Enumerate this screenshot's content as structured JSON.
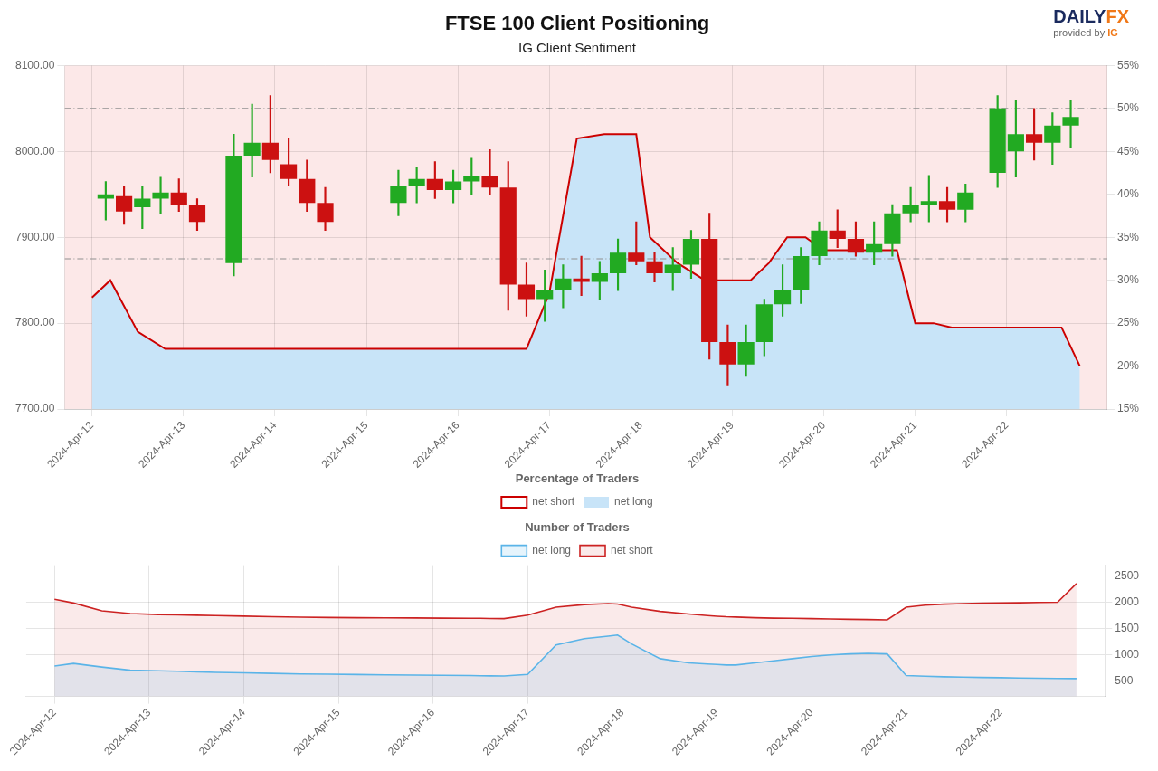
{
  "chart_data": [
    {
      "type": "candlestick",
      "title": "FTSE 100 Client Positioning",
      "subtitle": "IG Client Sentiment",
      "annotations": [
        [
          {
            "text": "DAILY",
            "color": "#1a2a5e"
          },
          {
            "text": "FX",
            "color": "#f07818"
          }
        ],
        [
          {
            "text": "provided by ",
            "color": "#666666"
          },
          {
            "text": "IG",
            "color": "#f07818"
          }
        ]
      ],
      "legend": "bottom",
      "legend_title": "Percentage of Traders",
      "grid": true,
      "background_color": "#fce8e8",
      "xlim": [
        -0.3,
        11.1
      ],
      "xticks": [
        {
          "value": 0,
          "label": "2024-Apr-12"
        },
        {
          "value": 1,
          "label": "2024-Apr-13"
        },
        {
          "value": 2,
          "label": "2024-Apr-14"
        },
        {
          "value": 3,
          "label": "2024-Apr-15"
        },
        {
          "value": 4,
          "label": "2024-Apr-16"
        },
        {
          "value": 5,
          "label": "2024-Apr-17"
        },
        {
          "value": 6,
          "label": "2024-Apr-18"
        },
        {
          "value": 7,
          "label": "2024-Apr-19"
        },
        {
          "value": 8,
          "label": "2024-Apr-20"
        },
        {
          "value": 9,
          "label": "2024-Apr-21"
        },
        {
          "value": 10,
          "label": "2024-Apr-22"
        }
      ],
      "ylim": [
        7700,
        8100
      ],
      "yticks": [
        {
          "value": 7700,
          "label": "7700.00"
        },
        {
          "value": 7800,
          "label": "7800.00"
        },
        {
          "value": 7900,
          "label": "7900.00"
        },
        {
          "value": 8000,
          "label": "8000.00"
        },
        {
          "value": 8100,
          "label": "8100.00"
        }
      ],
      "y2lim": [
        0.15,
        0.55
      ],
      "y2ticks": [
        {
          "value": 0.15,
          "label": "15%"
        },
        {
          "value": 0.2,
          "label": "20%"
        },
        {
          "value": 0.25,
          "label": "25%"
        },
        {
          "value": 0.3,
          "label": "30%"
        },
        {
          "value": 0.35,
          "label": "35%"
        },
        {
          "value": 0.4,
          "label": "40%"
        },
        {
          "value": 0.45,
          "label": "45%"
        },
        {
          "value": 0.5,
          "label": "50%"
        },
        {
          "value": 0.55,
          "label": "55%"
        }
      ],
      "candles": {
        "x": [
          0.15,
          0.35,
          0.55,
          0.75,
          0.95,
          1.15,
          1.55,
          1.75,
          1.95,
          2.15,
          2.35,
          2.55,
          3.35,
          3.55,
          3.75,
          3.95,
          4.15,
          4.35,
          4.55,
          4.75,
          4.95,
          5.15,
          5.35,
          5.55,
          5.75,
          5.95,
          6.15,
          6.35,
          6.55,
          6.75,
          6.95,
          7.15,
          7.35,
          7.55,
          7.75,
          7.95,
          8.15,
          8.35,
          8.55,
          8.75,
          8.95,
          9.15,
          9.35,
          9.55,
          9.9,
          10.1,
          10.3,
          10.5,
          10.7
        ],
        "open": [
          7945,
          7948,
          7935,
          7945,
          7952,
          7938,
          7870,
          7995,
          8010,
          7985,
          7968,
          7940,
          7940,
          7960,
          7968,
          7955,
          7965,
          7972,
          7958,
          7845,
          7828,
          7838,
          7852,
          7848,
          7858,
          7882,
          7872,
          7858,
          7868,
          7898,
          7778,
          7752,
          7778,
          7822,
          7838,
          7878,
          7908,
          7898,
          7882,
          7892,
          7928,
          7938,
          7942,
          7932,
          7975,
          8000,
          8020,
          8010,
          8030
        ],
        "high": [
          7965,
          7960,
          7960,
          7970,
          7968,
          7945,
          8020,
          8055,
          8065,
          8015,
          7990,
          7958,
          7978,
          7982,
          7988,
          7978,
          7992,
          8002,
          7988,
          7870,
          7862,
          7868,
          7878,
          7872,
          7898,
          7918,
          7882,
          7888,
          7908,
          7928,
          7798,
          7798,
          7828,
          7868,
          7888,
          7918,
          7932,
          7918,
          7918,
          7938,
          7958,
          7972,
          7958,
          7962,
          8065,
          8060,
          8050,
          8045,
          8060
        ],
        "low": [
          7920,
          7915,
          7910,
          7928,
          7930,
          7908,
          7855,
          7970,
          7975,
          7960,
          7930,
          7908,
          7925,
          7940,
          7945,
          7940,
          7950,
          7950,
          7815,
          7808,
          7802,
          7818,
          7832,
          7828,
          7838,
          7868,
          7848,
          7838,
          7852,
          7758,
          7728,
          7738,
          7762,
          7808,
          7823,
          7868,
          7888,
          7878,
          7868,
          7878,
          7918,
          7918,
          7918,
          7918,
          7958,
          7970,
          7990,
          7985,
          8005
        ],
        "close": [
          7950,
          7930,
          7945,
          7952,
          7938,
          7918,
          7995,
          8010,
          7990,
          7968,
          7940,
          7918,
          7960,
          7968,
          7955,
          7965,
          7972,
          7958,
          7845,
          7828,
          7838,
          7852,
          7848,
          7858,
          7882,
          7872,
          7858,
          7868,
          7898,
          7778,
          7752,
          7778,
          7822,
          7838,
          7878,
          7908,
          7898,
          7882,
          7892,
          7928,
          7938,
          7942,
          7932,
          7952,
          8050,
          8020,
          8010,
          8030,
          8040
        ],
        "colors": [
          "#22aa22",
          "#cc1111",
          "#22aa22",
          "#22aa22",
          "#cc1111",
          "#cc1111",
          "#22aa22",
          "#22aa22",
          "#cc1111",
          "#cc1111",
          "#cc1111",
          "#cc1111",
          "#22aa22",
          "#22aa22",
          "#cc1111",
          "#22aa22",
          "#22aa22",
          "#cc1111",
          "#cc1111",
          "#cc1111",
          "#22aa22",
          "#22aa22",
          "#cc1111",
          "#22aa22",
          "#22aa22",
          "#cc1111",
          "#cc1111",
          "#22aa22",
          "#22aa22",
          "#cc1111",
          "#cc1111",
          "#22aa22",
          "#22aa22",
          "#22aa22",
          "#22aa22",
          "#22aa22",
          "#cc1111",
          "#cc1111",
          "#22aa22",
          "#22aa22",
          "#22aa22",
          "#22aa22",
          "#cc1111",
          "#22aa22",
          "#22aa22",
          "#22aa22",
          "#cc1111",
          "#22aa22",
          "#22aa22"
        ]
      },
      "fill_below": {
        "name": "net long",
        "color": "#c8e4f8"
      },
      "series": [
        {
          "name": "net short",
          "type": "line",
          "axis": "y2",
          "color": "#cc0000",
          "x": [
            0.0,
            0.2,
            0.5,
            0.8,
            1.1,
            1.3,
            1.5,
            1.7,
            2.0,
            2.3,
            2.6,
            2.9,
            3.2,
            3.5,
            3.8,
            4.1,
            4.4,
            4.5,
            4.6,
            4.75,
            5.0,
            5.3,
            5.6,
            5.85,
            5.95,
            6.1,
            6.4,
            6.7,
            6.9,
            7.0,
            7.1,
            7.2,
            7.4,
            7.6,
            7.8,
            8.0,
            8.2,
            8.4,
            8.6,
            8.8,
            9.0,
            9.2,
            9.4,
            9.6,
            9.8,
            10.0,
            10.2,
            10.4,
            10.6,
            10.8
          ],
          "values": [
            0.28,
            0.3,
            0.24,
            0.22,
            0.22,
            0.22,
            0.22,
            0.22,
            0.22,
            0.22,
            0.22,
            0.22,
            0.22,
            0.22,
            0.22,
            0.22,
            0.22,
            0.22,
            0.22,
            0.22,
            0.285,
            0.465,
            0.47,
            0.47,
            0.47,
            0.35,
            0.32,
            0.3,
            0.3,
            0.3,
            0.3,
            0.3,
            0.32,
            0.35,
            0.35,
            0.335,
            0.335,
            0.335,
            0.335,
            0.335,
            0.25,
            0.25,
            0.245,
            0.245,
            0.245,
            0.245,
            0.245,
            0.245,
            0.245,
            0.2
          ]
        }
      ],
      "reference_lines": {
        "axis": "y2",
        "values": [
          0.5,
          0.325
        ],
        "line_style": "dashdot"
      }
    },
    {
      "type": "line",
      "legend": "top",
      "legend_title": "Number of Traders",
      "grid": true,
      "xlim": [
        -0.3,
        11.1
      ],
      "xticks": [
        {
          "value": 0,
          "label": "2024-Apr-12"
        },
        {
          "value": 1,
          "label": "2024-Apr-13"
        },
        {
          "value": 2,
          "label": "2024-Apr-14"
        },
        {
          "value": 3,
          "label": "2024-Apr-15"
        },
        {
          "value": 4,
          "label": "2024-Apr-16"
        },
        {
          "value": 5,
          "label": "2024-Apr-17"
        },
        {
          "value": 6,
          "label": "2024-Apr-18"
        },
        {
          "value": 7,
          "label": "2024-Apr-19"
        },
        {
          "value": 8,
          "label": "2024-Apr-20"
        },
        {
          "value": 9,
          "label": "2024-Apr-21"
        },
        {
          "value": 10,
          "label": "2024-Apr-22"
        }
      ],
      "ylim": [
        200,
        2700
      ],
      "yticks": [
        500,
        1000,
        1500,
        2000,
        2500
      ],
      "series": [
        {
          "name": "net long",
          "color": "#5ab4e8",
          "x": [
            0.0,
            0.2,
            0.5,
            0.8,
            1.1,
            1.3,
            1.5,
            1.7,
            2.0,
            2.3,
            2.6,
            2.9,
            3.2,
            3.5,
            3.8,
            4.1,
            4.4,
            4.5,
            4.6,
            4.75,
            5.0,
            5.3,
            5.6,
            5.85,
            5.95,
            6.1,
            6.4,
            6.7,
            6.9,
            7.0,
            7.1,
            7.2,
            7.4,
            7.6,
            7.8,
            8.0,
            8.2,
            8.4,
            8.6,
            8.8,
            9.0,
            9.2,
            9.4,
            9.6,
            9.8,
            10.0,
            10.2,
            10.4,
            10.6,
            10.8
          ],
          "values": [
            780,
            830,
            760,
            700,
            690,
            680,
            670,
            660,
            650,
            640,
            630,
            625,
            618,
            612,
            608,
            602,
            598,
            595,
            592,
            590,
            620,
            1180,
            1300,
            1350,
            1370,
            1200,
            920,
            840,
            820,
            810,
            800,
            800,
            840,
            880,
            920,
            960,
            990,
            1010,
            1020,
            1010,
            600,
            585,
            575,
            568,
            562,
            558,
            552,
            548,
            544,
            540
          ]
        },
        {
          "name": "net short",
          "color": "#cc2222",
          "x": [
            0.0,
            0.2,
            0.5,
            0.8,
            1.1,
            1.3,
            1.5,
            1.7,
            2.0,
            2.3,
            2.6,
            2.9,
            3.2,
            3.5,
            3.8,
            4.1,
            4.4,
            4.5,
            4.6,
            4.75,
            5.0,
            5.3,
            5.6,
            5.85,
            5.95,
            6.1,
            6.4,
            6.7,
            6.9,
            7.0,
            7.1,
            7.2,
            7.4,
            7.6,
            7.8,
            8.0,
            8.2,
            8.4,
            8.6,
            8.8,
            9.0,
            9.2,
            9.4,
            9.6,
            9.8,
            10.0,
            10.2,
            10.4,
            10.6,
            10.8
          ],
          "values": [
            2050,
            1980,
            1830,
            1780,
            1760,
            1755,
            1748,
            1740,
            1730,
            1718,
            1710,
            1705,
            1700,
            1698,
            1695,
            1692,
            1690,
            1688,
            1685,
            1683,
            1750,
            1900,
            1950,
            1970,
            1960,
            1900,
            1820,
            1770,
            1740,
            1728,
            1718,
            1712,
            1700,
            1692,
            1688,
            1682,
            1675,
            1670,
            1665,
            1660,
            1900,
            1940,
            1958,
            1968,
            1975,
            1980,
            1985,
            1990,
            1995,
            2350
          ]
        }
      ]
    }
  ]
}
